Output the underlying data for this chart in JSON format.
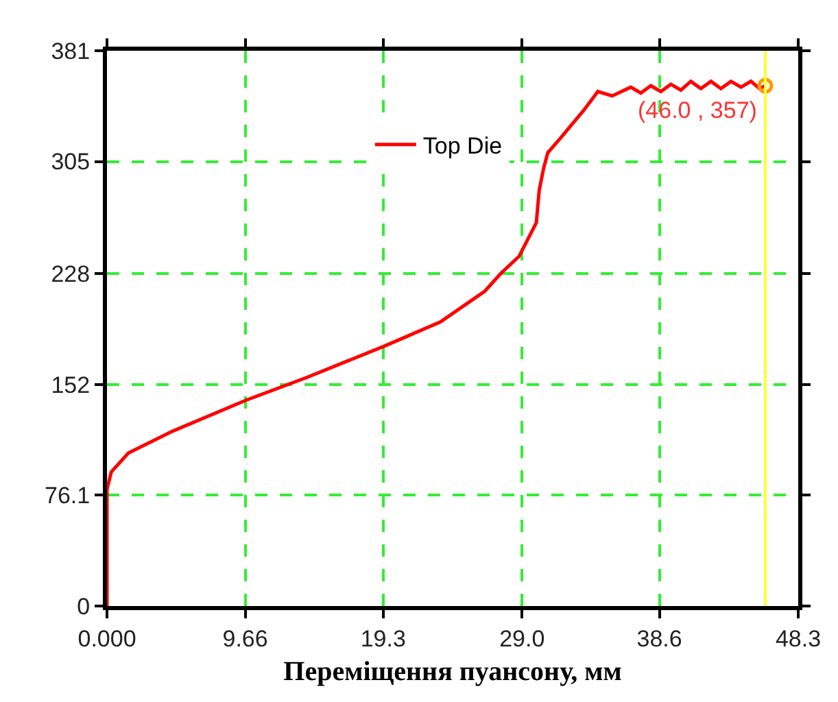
{
  "chart_data": {
    "type": "line",
    "xlabel": "Переміщення пуансону, мм",
    "x": [
      0,
      0,
      0.3,
      1.5,
      4.6,
      9.66,
      14.0,
      19.3,
      23.3,
      26.4,
      27.5,
      28.8,
      30.0,
      30.2,
      30.5,
      30.8,
      31.6,
      33.3,
      34.3,
      35.3,
      36.6,
      37.3,
      38.0,
      38.7,
      39.4,
      40.1,
      40.8,
      41.5,
      42.2,
      42.9,
      43.6,
      44.3,
      45.0,
      45.6,
      46.0
    ],
    "series": [
      {
        "name": "Top Die",
        "color": "#ff0000",
        "values": [
          0,
          80,
          92,
          105,
          120,
          141,
          157,
          178,
          195,
          216,
          228,
          240,
          263,
          285,
          300,
          311,
          320,
          340,
          353,
          350,
          356,
          352,
          357,
          353,
          358,
          354,
          360,
          355,
          360,
          355,
          360,
          356,
          360,
          355,
          357
        ]
      },
      {
        "type": "scatter",
        "color": "#ff9900",
        "x": [
          46.0
        ],
        "values": [
          357
        ],
        "marker": "circle"
      }
    ],
    "annotations": [
      {
        "text": "(46.0 , 357)",
        "x": 46.0,
        "y": 357
      }
    ],
    "ref_lines": [
      {
        "axis": "x",
        "value": 46.0,
        "color": "#ffff33"
      }
    ],
    "xlim": [
      0,
      48.3
    ],
    "xticks": [
      {
        "value": 0,
        "label": "0.000"
      },
      9.66,
      19.3,
      {
        "value": 29.0,
        "label": "29.0"
      },
      38.6,
      48.3
    ],
    "ylim": [
      0,
      381
    ],
    "yticks": [
      0,
      76.1,
      152,
      228,
      305,
      381
    ],
    "grid": true,
    "legend": "top",
    "marker": "none",
    "line_style": "solid"
  }
}
